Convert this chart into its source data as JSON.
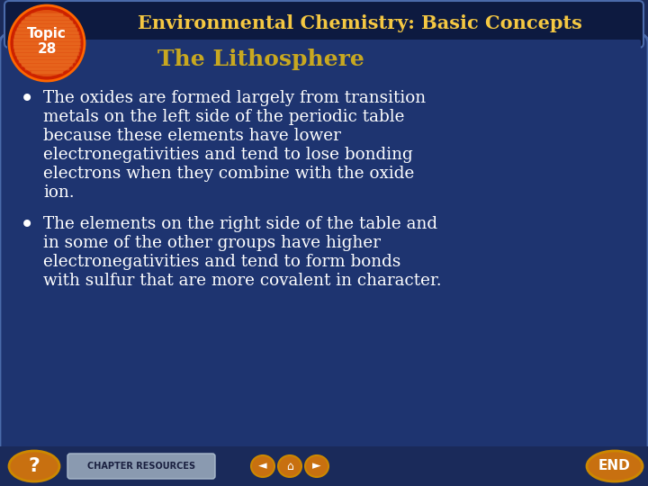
{
  "title": "Environmental Chemistry: Basic Concepts",
  "subtitle": "The Lithosphere",
  "topic_label": "Topic\n28",
  "b1_lines": [
    "The oxides are formed largely from transition",
    "metals on the left side of the periodic table",
    "because these elements have lower",
    "electronegativities and tend to lose bonding",
    "electrons when they combine with the oxide",
    "ion."
  ],
  "b2_lines": [
    "The elements on the right side of the table and",
    "in some of the other groups have higher",
    "electronegativities and tend to form bonds",
    "with sulfur that are more covalent in character."
  ],
  "bg_outer": "#1a2a5a",
  "bg_inner": "#1e3470",
  "title_color": "#f5c842",
  "subtitle_color": "#c8a820",
  "body_text_color": "#ffffff",
  "topic_circle_red": "#cc2200",
  "topic_circle_orange": "#e05010",
  "topic_text_color": "#ffffff",
  "title_bar_color": "#0d1a40",
  "footer_button_color": "#c87010",
  "footer_button_edge": "#cc8800",
  "chapter_btn_color": "#8a9ab0",
  "chapter_btn_edge": "#aabbcc",
  "inner_border_color": "#4a6aaa"
}
